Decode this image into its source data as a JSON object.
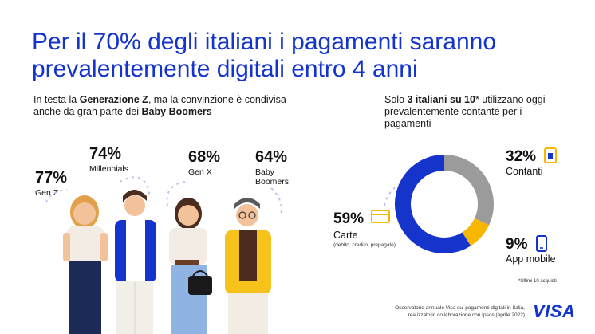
{
  "title": "Per il 70% degli italiani i pagamenti saranno prevalentemente digitali entro 4 anni",
  "left_subtitle": {
    "part1": "In testa la ",
    "bold1": "Generazione Z",
    "part2": ", ma la convinzione è condivisa anche da gran parte dei ",
    "bold2": "Baby Boomers"
  },
  "right_subtitle": {
    "part1": "Solo ",
    "bold1": "3 italiani su 10",
    "part2": "* utilizzano oggi prevalentemente contante per i pagamenti"
  },
  "footnote": "*Ultimi 10 acquisti",
  "source_line1": "Osservatorio annuale Visa sui pagamenti digitali in Italia,",
  "source_line2": "realizzato in collaborazione con Ipsos (aprile 2022)",
  "logo_text": "VISA",
  "colors": {
    "brand_blue": "#1434cb",
    "gray": "#9b9b9b",
    "yellow": "#f7b600"
  },
  "chart_data": [
    {
      "type": "bar",
      "categories": [
        "Gen Z",
        "Millennials",
        "Gen X",
        "Baby Boomers"
      ],
      "values": [
        77,
        74,
        68,
        64
      ],
      "value_labels": [
        "77%",
        "74%",
        "68%",
        "64%"
      ],
      "unit": "%"
    },
    {
      "type": "pie",
      "donut": true,
      "slices": [
        {
          "label": "Carte",
          "sublabel": "(debito, credito, prepagate)",
          "value": 59,
          "value_label": "59%",
          "color": "#1434cb",
          "icon": "card-icon"
        },
        {
          "label": "Contanti",
          "value": 32,
          "value_label": "32%",
          "color": "#9b9b9b",
          "icon": "atm-icon"
        },
        {
          "label": "App mobile",
          "value": 9,
          "value_label": "9%",
          "color": "#f7b600",
          "icon": "phone-icon"
        }
      ]
    }
  ]
}
